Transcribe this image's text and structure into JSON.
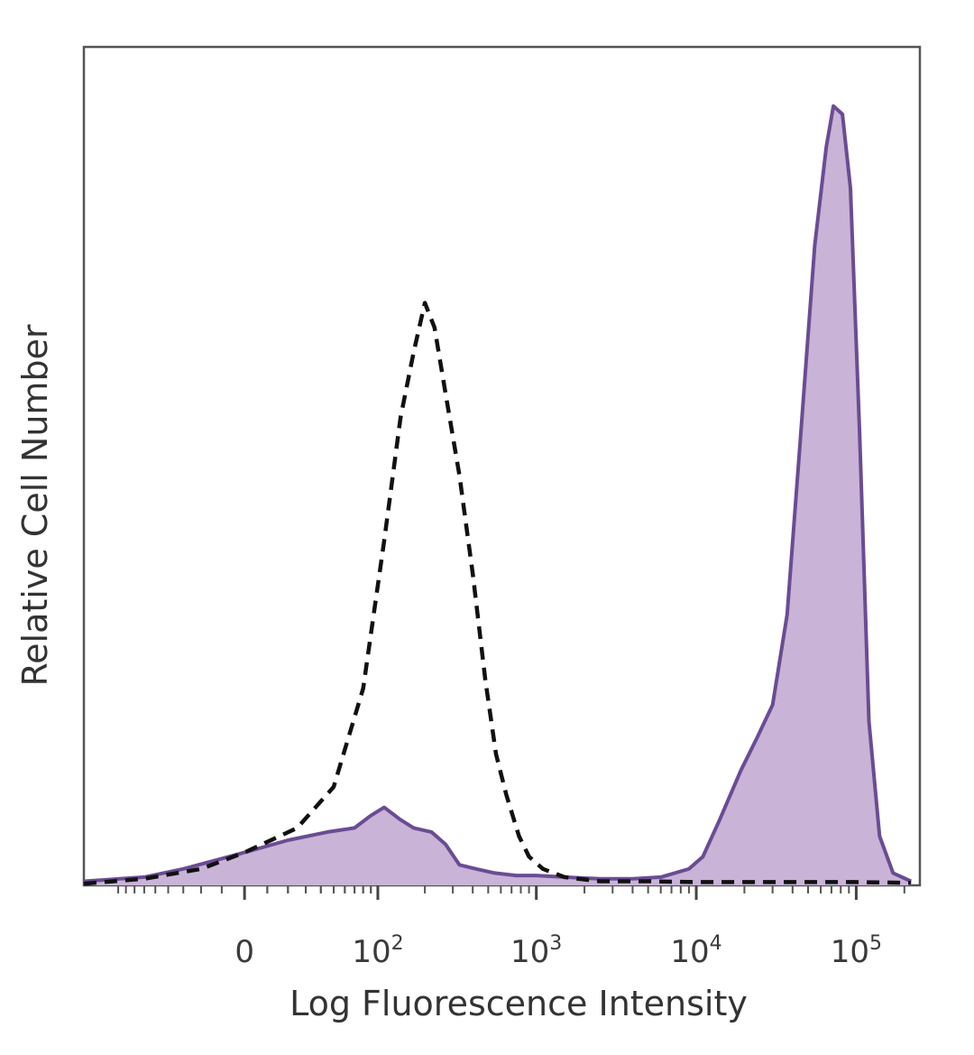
{
  "chart_data": {
    "type": "area",
    "xlabel": "Log Fluorescence Intensity",
    "ylabel": "Relative Cell Number",
    "x_scale": "biexponential",
    "x_ticks": [
      {
        "value": 0,
        "base": "0",
        "exp": ""
      },
      {
        "value": 100,
        "base": "10",
        "exp": "2"
      },
      {
        "value": 1000,
        "base": "10",
        "exp": "3"
      },
      {
        "value": 10000,
        "base": "10",
        "exp": "4"
      },
      {
        "value": 100000,
        "base": "10",
        "exp": "5"
      }
    ],
    "xlim": [
      -150,
      250000
    ],
    "ylim": [
      0,
      100
    ],
    "grid": false,
    "legend": "none",
    "series": [
      {
        "style": "filled",
        "color": "#6a4c93",
        "fill": "#c9b3d6",
        "points": [
          [
            -150,
            0.5
          ],
          [
            -60,
            1.0
          ],
          [
            -30,
            2.0
          ],
          [
            0,
            4.0
          ],
          [
            20,
            5.5
          ],
          [
            45,
            6.5
          ],
          [
            70,
            7.0
          ],
          [
            90,
            8.5
          ],
          [
            110,
            9.5
          ],
          [
            140,
            8.0
          ],
          [
            170,
            7.0
          ],
          [
            220,
            6.5
          ],
          [
            270,
            5.0
          ],
          [
            330,
            2.5
          ],
          [
            420,
            2.0
          ],
          [
            550,
            1.5
          ],
          [
            750,
            1.2
          ],
          [
            1000,
            1.2
          ],
          [
            1500,
            1.0
          ],
          [
            2500,
            0.8
          ],
          [
            4000,
            0.8
          ],
          [
            6000,
            1.0
          ],
          [
            9000,
            2.0
          ],
          [
            11000,
            3.5
          ],
          [
            14000,
            8.0
          ],
          [
            19000,
            14.0
          ],
          [
            24000,
            18.0
          ],
          [
            30000,
            22.0
          ],
          [
            37000,
            33.0
          ],
          [
            45000,
            55.0
          ],
          [
            55000,
            78.0
          ],
          [
            65000,
            90.0
          ],
          [
            72000,
            95.0
          ],
          [
            82000,
            94.0
          ],
          [
            92000,
            85.0
          ],
          [
            105000,
            55.0
          ],
          [
            120000,
            20.0
          ],
          [
            140000,
            6.0
          ],
          [
            170000,
            1.5
          ],
          [
            220000,
            0.5
          ]
        ]
      },
      {
        "style": "dashed",
        "color": "#111111",
        "points": [
          [
            -150,
            0.2
          ],
          [
            -60,
            0.8
          ],
          [
            -20,
            2.0
          ],
          [
            0,
            4.0
          ],
          [
            25,
            7.0
          ],
          [
            50,
            12.0
          ],
          [
            80,
            24.0
          ],
          [
            110,
            42.0
          ],
          [
            140,
            57.0
          ],
          [
            170,
            65.0
          ],
          [
            200,
            71.0
          ],
          [
            230,
            68.0
          ],
          [
            270,
            60.0
          ],
          [
            330,
            50.0
          ],
          [
            400,
            38.0
          ],
          [
            480,
            25.0
          ],
          [
            560,
            16.0
          ],
          [
            650,
            11.0
          ],
          [
            780,
            6.0
          ],
          [
            900,
            3.5
          ],
          [
            1100,
            2.0
          ],
          [
            1500,
            1.0
          ],
          [
            2500,
            0.5
          ],
          [
            5000,
            0.5
          ],
          [
            10000,
            0.4
          ],
          [
            30000,
            0.4
          ],
          [
            100000,
            0.4
          ],
          [
            220000,
            0.3
          ]
        ]
      }
    ]
  }
}
